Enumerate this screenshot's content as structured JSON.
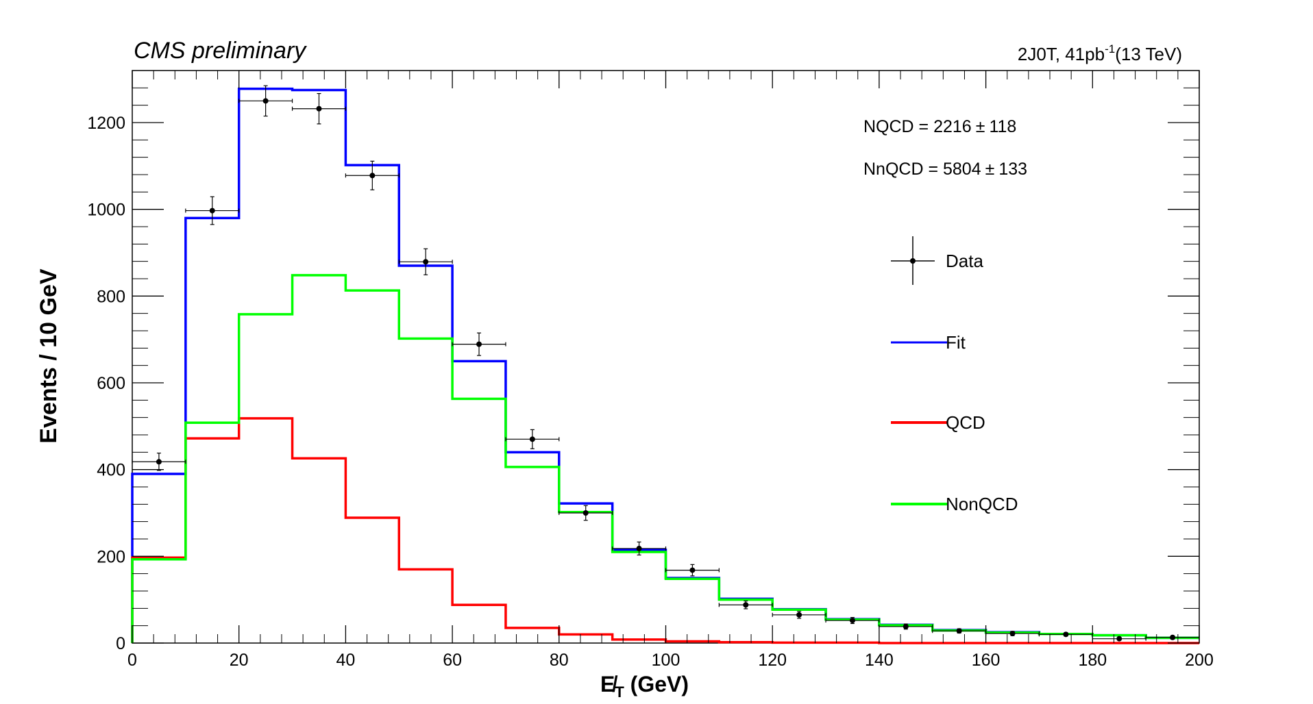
{
  "chart_data": {
    "type": "histogram-fit",
    "title_left": "CMS preliminary",
    "title_right": "2J0T, 41pb",
    "title_right_sup": "-1",
    "title_right_tail": "(13 TeV)",
    "xlabel": "E̸",
    "xlabel_sub": "T",
    "xlabel_tail": " (GeV)",
    "ylabel": "Events / 10 GeV",
    "xlim": [
      0,
      200
    ],
    "ylim": [
      0,
      1320
    ],
    "xticks": [
      0,
      20,
      40,
      60,
      80,
      100,
      120,
      140,
      160,
      180,
      200
    ],
    "yticks": [
      0,
      200,
      400,
      600,
      800,
      1000,
      1200
    ],
    "bin_edges": [
      0,
      10,
      20,
      30,
      40,
      50,
      60,
      70,
      80,
      90,
      100,
      110,
      120,
      130,
      140,
      150,
      160,
      170,
      180,
      190,
      200
    ],
    "series": [
      {
        "name": "Fit",
        "kind": "step",
        "color": "#0000ff",
        "values": [
          390,
          980,
          1278,
          1275,
          1102,
          870,
          650,
          440,
          322,
          215,
          150,
          102,
          78,
          55,
          42,
          30,
          25,
          21,
          18,
          12
        ]
      },
      {
        "name": "QCD",
        "kind": "step",
        "color": "#ff0000",
        "values": [
          197,
          472,
          518,
          426,
          289,
          170,
          88,
          35,
          20,
          8,
          4,
          2,
          1,
          1,
          0,
          0,
          0,
          0,
          0,
          0
        ]
      },
      {
        "name": "NonQCD",
        "kind": "step",
        "color": "#00ff00",
        "values": [
          193,
          508,
          758,
          848,
          813,
          702,
          563,
          406,
          302,
          210,
          148,
          100,
          77,
          54,
          41,
          29,
          24,
          21,
          18,
          12
        ]
      },
      {
        "name": "Data",
        "kind": "points",
        "color": "#000000",
        "x": [
          5,
          15,
          25,
          35,
          45,
          55,
          65,
          75,
          85,
          95,
          105,
          115,
          125,
          135,
          145,
          155,
          165,
          175,
          185,
          195
        ],
        "values": [
          418,
          997,
          1250,
          1232,
          1078,
          879,
          689,
          470,
          300,
          218,
          168,
          88,
          65,
          52,
          38,
          28,
          22,
          20,
          10,
          13
        ],
        "errors": [
          20,
          32,
          35,
          35,
          33,
          30,
          26,
          22,
          17,
          15,
          13,
          9,
          8,
          7,
          6,
          5,
          5,
          4,
          3,
          4
        ]
      }
    ],
    "annotations": [
      {
        "label": "NQCD =  2216",
        "pm": "±",
        "err": "118"
      },
      {
        "label": "NnQCD =  5804",
        "pm": "±",
        "err": "133"
      }
    ],
    "legend": {
      "position": "right",
      "entries": [
        "Data",
        "Fit",
        "QCD",
        "NonQCD"
      ]
    }
  }
}
